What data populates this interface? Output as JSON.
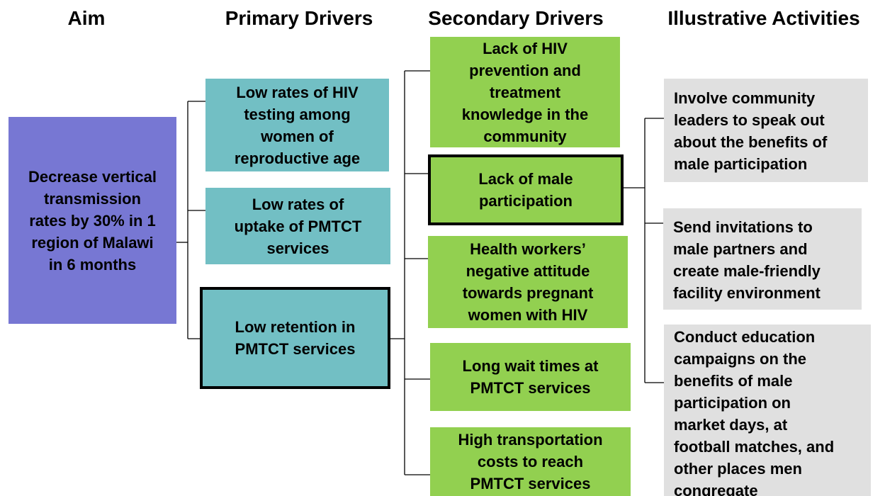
{
  "headers": [
    "Aim",
    "Primary Drivers",
    "Secondary Drivers",
    "Illustrative Activities"
  ],
  "aim": {
    "lines": [
      "Decrease vertical",
      "transmission",
      "rates by 30% in 1",
      "region of Malawi",
      "in 6 months"
    ]
  },
  "primary_drivers": [
    {
      "lines": [
        "Low rates of HIV",
        "testing among",
        "women of",
        "reproductive age"
      ]
    },
    {
      "lines": [
        "Low rates of",
        "uptake of PMTCT",
        "services"
      ]
    },
    {
      "lines": [
        "Low retention in",
        "PMTCT services"
      ]
    }
  ],
  "secondary_drivers": [
    {
      "lines": [
        "Lack of HIV",
        "prevention and",
        "treatment",
        "knowledge in the",
        "community"
      ]
    },
    {
      "lines": [
        "Lack of male",
        "participation"
      ]
    },
    {
      "lines": [
        "Health workers’",
        "negative attitude",
        "towards pregnant",
        "women with HIV"
      ]
    },
    {
      "lines": [
        "Long wait times at",
        "PMTCT services"
      ]
    },
    {
      "lines": [
        "High transportation",
        "costs to reach",
        "PMTCT services"
      ]
    }
  ],
  "activities": [
    {
      "lines": [
        "Involve community",
        "leaders to speak out",
        "about the benefits of",
        "male participation"
      ]
    },
    {
      "lines": [
        "Send invitations to",
        "male partners and",
        "create male-friendly",
        "facility environment"
      ]
    },
    {
      "lines": [
        "Conduct education",
        "campaigns on the",
        "benefits of male",
        "participation on",
        "market days, at",
        "football matches, and",
        "other places men",
        "congregate"
      ]
    }
  ]
}
